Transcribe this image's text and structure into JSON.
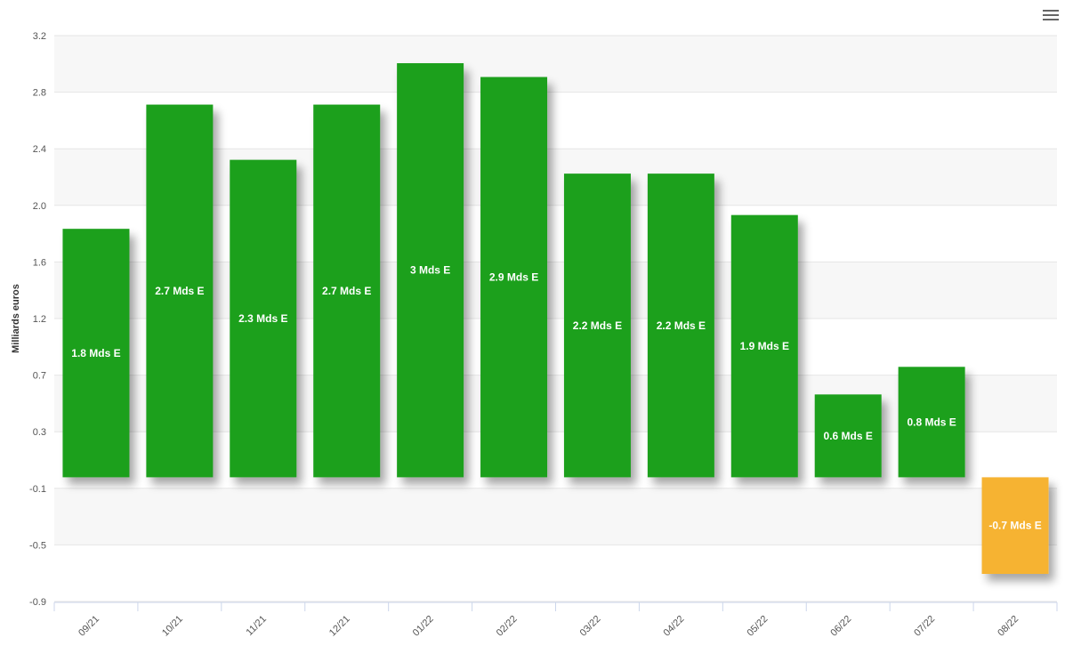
{
  "chart_data": {
    "type": "bar",
    "title": "",
    "xlabel": "",
    "ylabel": "Milliards euros",
    "categories": [
      "09/21",
      "10/21",
      "11/21",
      "12/21",
      "01/22",
      "02/22",
      "03/22",
      "04/22",
      "05/22",
      "06/22",
      "07/22",
      "08/22"
    ],
    "values": [
      1.8,
      2.7,
      2.3,
      2.7,
      3.0,
      2.9,
      2.2,
      2.2,
      1.9,
      0.6,
      0.8,
      -0.7
    ],
    "data_labels": [
      "1.8 Mds E",
      "2.7 Mds E",
      "2.3 Mds E",
      "2.7 Mds E",
      "3 Mds E",
      "2.9 Mds E",
      "2.2 Mds E",
      "2.2 Mds E",
      "1.9 Mds E",
      "0.6 Mds E",
      "0.8 Mds E",
      "-0.7 Mds E"
    ],
    "ylim": [
      -0.9,
      3.2
    ],
    "yticks": [
      "3.2",
      "2.8",
      "2.4",
      "2.0",
      "1.6",
      "1.2",
      "0.7",
      "0.3",
      "-0.1",
      "-0.5",
      "-0.9"
    ],
    "grid": true,
    "colors": {
      "positive": "#1fa01f",
      "negative": "#f6b331"
    }
  },
  "menu": {
    "icon": "hamburger-menu-icon"
  }
}
